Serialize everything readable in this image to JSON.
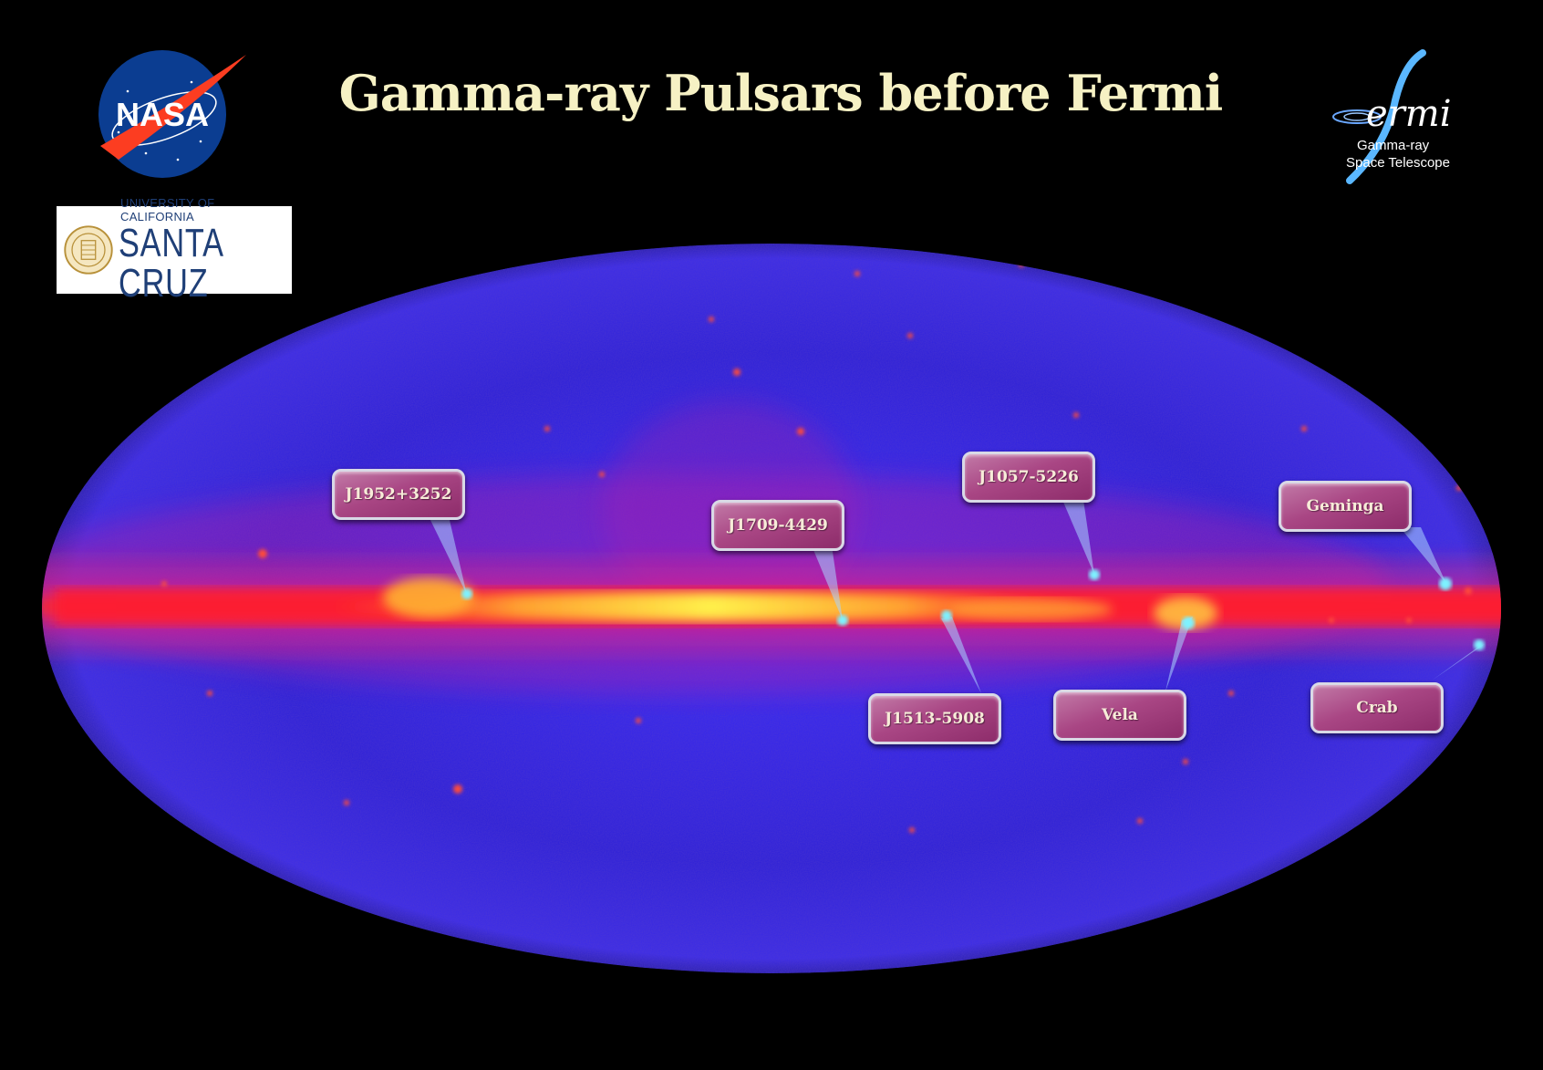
{
  "title": "Gamma-ray Pulsars before Fermi",
  "logos": {
    "nasa": {
      "text": "NASA"
    },
    "ucsc": {
      "line1": "UNIVERSITY OF CALIFORNIA",
      "line2": "SANTA CRUZ"
    },
    "fermi": {
      "word": "ermi",
      "sub1": "Gamma-ray",
      "sub2": "Space Telescope"
    }
  },
  "pulsars": [
    {
      "label": "J1952+3252"
    },
    {
      "label": "J1709-4429"
    },
    {
      "label": "J1057-5226"
    },
    {
      "label": "Geminga"
    },
    {
      "label": "J1513-5908"
    },
    {
      "label": "Vela"
    },
    {
      "label": "Crab"
    }
  ],
  "colors": {
    "background": "#000000",
    "sky_blue": "#2a1fd6",
    "galactic_plane": "#ff2a3c",
    "plane_core": "#ffe84a",
    "callout": "#a94684",
    "pulsar_marker": "#7ef2ff",
    "title": "#f6f1c4"
  }
}
